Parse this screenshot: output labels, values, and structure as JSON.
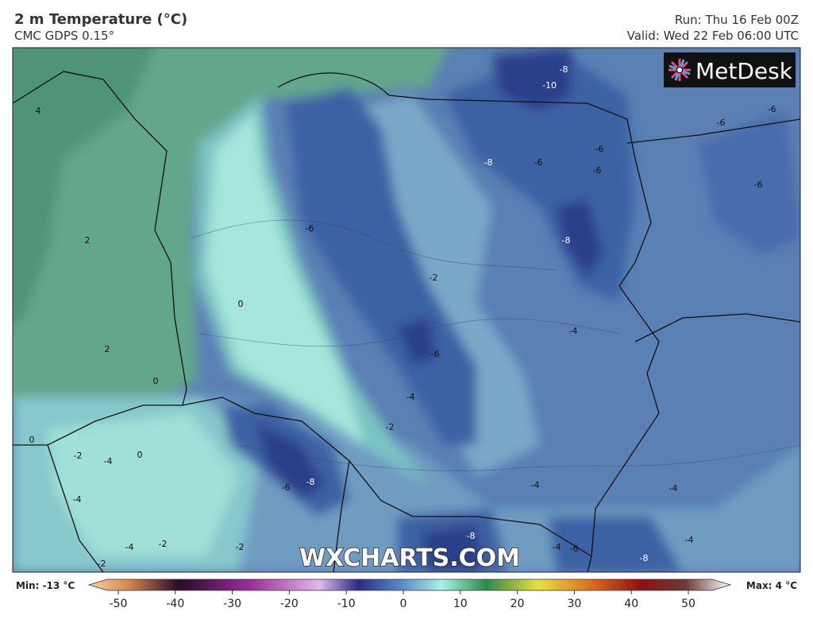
{
  "header": {
    "title": "2 m Temperature (°C)",
    "model": "CMC GDPS 0.15°",
    "run": "Run: Thu 16 Feb 00Z",
    "valid": "Valid: Wed 22 Feb 06:00 UTC"
  },
  "map": {
    "logo": "MetDesk",
    "watermark": "WXCHARTS.COM",
    "contour_labels": [
      4,
      -8,
      -10,
      -6,
      -6,
      -6,
      -8,
      -6,
      -6,
      -6,
      2,
      -6,
      -8,
      -2,
      0,
      -4,
      2,
      -6,
      0,
      -4,
      -2,
      0,
      -2,
      -4,
      0,
      -8,
      -6,
      -4,
      -4,
      -4,
      -8,
      -4,
      -2,
      -2,
      -4,
      -6,
      -4,
      -8,
      -2
    ]
  },
  "legend": {
    "min": "Min: -13 °C",
    "max": "Max: 4 °C",
    "ticks": [
      -50,
      -40,
      -30,
      -20,
      -10,
      0,
      10,
      20,
      30,
      40,
      50
    ]
  }
}
